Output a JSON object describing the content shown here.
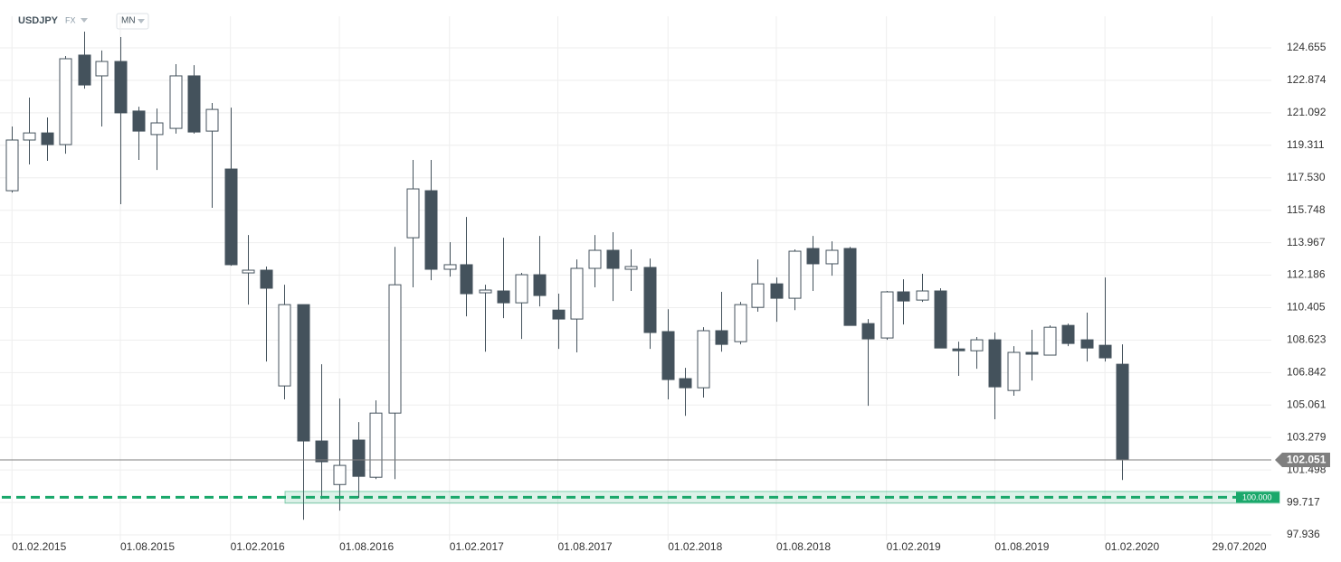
{
  "chart_data": {
    "type": "candlestick",
    "symbol": "USDJPY",
    "market": "FX",
    "timeframe": "MN",
    "up_color": "#ffffff",
    "down_color": "#44525c",
    "line_color": "#44525c",
    "grid": true,
    "xlim": [
      "2015-01-12",
      "2020-11-05"
    ],
    "ylim": [
      97.64,
      126.39
    ],
    "yticks": [
      97.936,
      99.717,
      101.498,
      103.279,
      105.061,
      106.842,
      108.623,
      110.405,
      112.186,
      113.967,
      115.748,
      {
        "value": 117.53,
        "label": "117.530"
      },
      119.311,
      121.092,
      122.874,
      124.655
    ],
    "xticks": [
      {
        "value": "2015-02-01",
        "label": "01.02.2015"
      },
      {
        "value": "2015-08-01",
        "label": "01.08.2015"
      },
      {
        "value": "2016-02-01",
        "label": "01.02.2016"
      },
      {
        "value": "2016-08-01",
        "label": "01.08.2016"
      },
      {
        "value": "2017-02-01",
        "label": "01.02.2017"
      },
      {
        "value": "2017-08-01",
        "label": "01.08.2017"
      },
      {
        "value": "2018-02-01",
        "label": "01.02.2018"
      },
      {
        "value": "2018-08-01",
        "label": "01.08.2018"
      },
      {
        "value": "2019-02-01",
        "label": "01.02.2019"
      },
      {
        "value": "2019-08-01",
        "label": "01.08.2019"
      },
      {
        "value": "2020-02-01",
        "label": "01.02.2020"
      },
      {
        "value": "2020-07-29",
        "label": "29.07.2020"
      }
    ],
    "x": [
      "2015-02-01",
      "2015-03-01",
      "2015-04-01",
      "2015-05-01",
      "2015-06-01",
      "2015-07-01",
      "2015-08-01",
      "2015-09-01",
      "2015-10-01",
      "2015-11-01",
      "2015-12-01",
      "2016-01-01",
      "2016-02-01",
      "2016-03-01",
      "2016-04-01",
      "2016-05-01",
      "2016-06-01",
      "2016-07-01",
      "2016-08-01",
      "2016-09-01",
      "2016-10-01",
      "2016-11-01",
      "2016-12-01",
      "2017-01-01",
      "2017-02-01",
      "2017-03-01",
      "2017-04-01",
      "2017-05-01",
      "2017-06-01",
      "2017-07-01",
      "2017-08-01",
      "2017-09-01",
      "2017-10-01",
      "2017-11-01",
      "2017-12-01",
      "2018-01-01",
      "2018-02-01",
      "2018-03-01",
      "2018-04-01",
      "2018-05-01",
      "2018-06-01",
      "2018-07-01",
      "2018-08-01",
      "2018-09-01",
      "2018-10-01",
      "2018-11-01",
      "2018-12-01",
      "2019-01-01",
      "2019-02-01",
      "2019-03-01",
      "2019-04-01",
      "2019-05-01",
      "2019-06-01",
      "2019-07-01",
      "2019-08-01",
      "2019-09-01",
      "2019-10-01",
      "2019-11-01",
      "2019-12-01",
      "2020-01-01",
      "2020-02-01",
      "2020-03-01"
    ],
    "open": [
      116.82,
      119.6,
      119.99,
      119.35,
      124.26,
      123.12,
      123.91,
      121.19,
      119.9,
      120.24,
      123.12,
      120.09,
      118.01,
      112.31,
      112.46,
      106.11,
      110.57,
      103.09,
      100.7,
      103.14,
      101.1,
      104.62,
      114.24,
      116.82,
      112.51,
      112.76,
      111.22,
      111.32,
      110.67,
      112.21,
      110.27,
      109.78,
      112.56,
      113.55,
      112.51,
      112.61,
      109.09,
      106.51,
      106.01,
      109.14,
      108.54,
      110.42,
      111.71,
      110.92,
      113.65,
      112.81,
      113.65,
      109.53,
      108.74,
      111.27,
      110.82,
      111.32,
      108.14,
      108.04,
      108.64,
      105.86,
      107.95,
      107.8,
      109.43,
      108.64,
      108.34,
      107.3
    ],
    "high": [
      120.34,
      121.93,
      120.84,
      124.21,
      125.55,
      124.51,
      125.25,
      121.43,
      121.33,
      123.76,
      123.71,
      121.63,
      121.38,
      114.39,
      112.66,
      111.66,
      110.57,
      107.3,
      105.42,
      104.13,
      105.32,
      113.74,
      118.51,
      118.51,
      114.0,
      115.38,
      111.66,
      114.24,
      112.31,
      114.34,
      111.17,
      113.05,
      114.39,
      114.54,
      113.6,
      113.1,
      110.32,
      107.1,
      109.33,
      111.27,
      110.72,
      113.05,
      112.06,
      113.6,
      114.34,
      114.04,
      113.74,
      109.78,
      111.32,
      111.96,
      112.26,
      111.47,
      108.54,
      108.79,
      109.04,
      108.29,
      109.19,
      109.43,
      109.53,
      110.13,
      112.06,
      108.39
    ],
    "low": [
      116.72,
      118.26,
      118.46,
      118.85,
      122.42,
      120.34,
      116.08,
      118.51,
      117.96,
      119.95,
      119.95,
      115.88,
      112.7,
      110.57,
      107.45,
      105.37,
      98.77,
      99.91,
      99.27,
      99.96,
      101.0,
      101.0,
      111.52,
      111.91,
      112.11,
      109.93,
      107.99,
      109.83,
      108.69,
      110.47,
      108.14,
      107.95,
      111.52,
      110.77,
      111.32,
      108.14,
      105.37,
      104.47,
      105.47,
      107.99,
      108.39,
      110.18,
      109.63,
      110.27,
      111.32,
      112.16,
      109.43,
      105.02,
      108.64,
      109.48,
      110.72,
      108.19,
      106.66,
      107.05,
      104.28,
      105.57,
      106.41,
      107.8,
      108.29,
      107.45,
      107.45,
      100.95
    ],
    "close": [
      119.6,
      119.99,
      119.35,
      124.06,
      122.62,
      123.91,
      121.09,
      120.09,
      120.54,
      123.12,
      120.04,
      121.28,
      112.76,
      112.46,
      111.47,
      110.57,
      103.09,
      101.95,
      101.75,
      101.15,
      104.62,
      111.66,
      116.92,
      112.51,
      112.76,
      111.17,
      111.37,
      110.67,
      112.21,
      111.07,
      109.78,
      112.56,
      113.55,
      112.56,
      112.66,
      109.04,
      106.46,
      106.01,
      109.14,
      108.39,
      110.57,
      111.71,
      110.92,
      113.5,
      112.81,
      113.55,
      109.43,
      108.69,
      111.27,
      110.77,
      111.32,
      108.19,
      108.04,
      108.64,
      106.06,
      107.95,
      107.85,
      109.33,
      108.44,
      108.19,
      107.65,
      102.051
    ],
    "price_line": 102.051,
    "price_line_color": "#7f7f7f",
    "alert_level": {
      "value": 100,
      "label": "100.000"
    },
    "alert_color": "#1aa86b"
  }
}
